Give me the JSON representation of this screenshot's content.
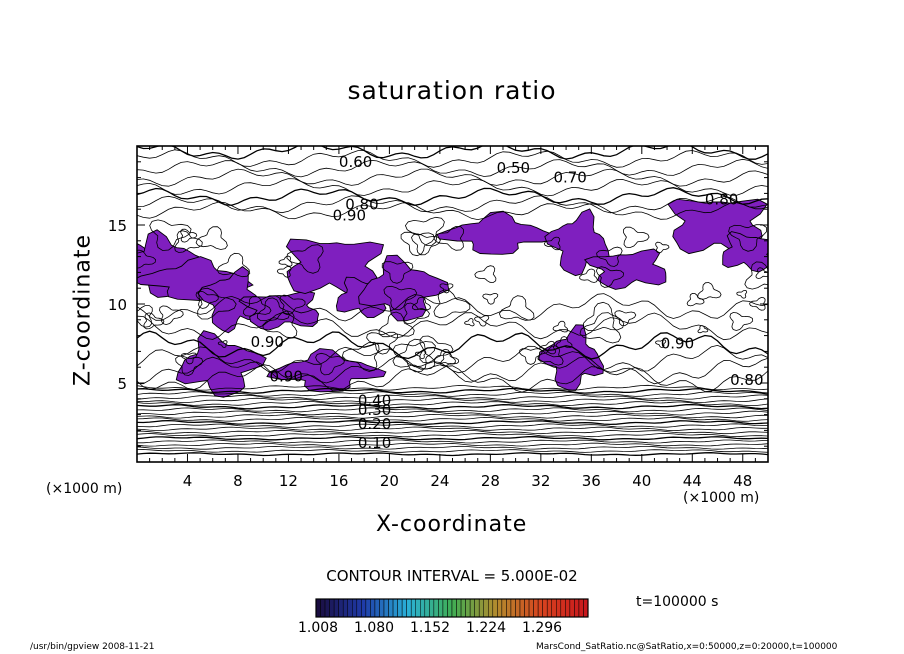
{
  "chart_data": {
    "type": "contour",
    "title": "saturation ratio",
    "xlabel": "X-coordinate",
    "ylabel": "Z-coordinate",
    "x_unit": "(×1000 m)",
    "y_unit": "(×1000 m)",
    "xlim": [
      0,
      50
    ],
    "ylim": [
      0,
      20
    ],
    "x_ticks": [
      4,
      8,
      12,
      16,
      20,
      24,
      28,
      32,
      36,
      40,
      44,
      48
    ],
    "y_ticks": [
      5,
      10,
      15
    ],
    "contour_interval_text": "CONTOUR INTERVAL = 5.000E-02",
    "time_text": "t=100000 s",
    "shaded_threshold": 1.0,
    "shade_color": "#7f1fbf",
    "colorbar": {
      "tick_labels": [
        "1.008",
        "1.080",
        "1.152",
        "1.224",
        "1.296"
      ],
      "colors": [
        "#1a0d40",
        "#1f3aa8",
        "#2ab0d8",
        "#3fae54",
        "#b38b2e",
        "#d8441f",
        "#c8171c"
      ]
    },
    "contour_labels": [
      {
        "text": "0.10",
        "x": 17.5,
        "y": 1.2
      },
      {
        "text": "0.20",
        "x": 17.5,
        "y": 2.4
      },
      {
        "text": "0.30",
        "x": 17.5,
        "y": 3.3
      },
      {
        "text": "0.40",
        "x": 17.5,
        "y": 3.9
      },
      {
        "text": "0.60",
        "x": 16.0,
        "y": 19.0
      },
      {
        "text": "0.50",
        "x": 28.5,
        "y": 18.6
      },
      {
        "text": "0.70",
        "x": 33.0,
        "y": 18.0
      },
      {
        "text": "0.80",
        "x": 16.5,
        "y": 16.3
      },
      {
        "text": "0.90",
        "x": 15.5,
        "y": 15.6
      },
      {
        "text": "0.80",
        "x": 45.0,
        "y": 16.6
      },
      {
        "text": "0.90",
        "x": 41.5,
        "y": 7.5
      },
      {
        "text": "0.90",
        "x": 9.0,
        "y": 7.6
      },
      {
        "text": "0.90",
        "x": 10.5,
        "y": 5.4
      },
      {
        "text": "0.80",
        "x": 47.0,
        "y": 5.2
      }
    ],
    "supersaturated_regions": [
      {
        "x": 0.5,
        "z": 12.6
      },
      {
        "x": 2.0,
        "z": 12.4
      },
      {
        "x": 4.5,
        "z": 11.5
      },
      {
        "x": 7.5,
        "z": 10.2
      },
      {
        "x": 11.5,
        "z": 9.6
      },
      {
        "x": 15.5,
        "z": 12.4
      },
      {
        "x": 18.0,
        "z": 10.4
      },
      {
        "x": 21.0,
        "z": 10.9
      },
      {
        "x": 28.5,
        "z": 14.4
      },
      {
        "x": 35.0,
        "z": 13.8
      },
      {
        "x": 39.0,
        "z": 12.2
      },
      {
        "x": 46.0,
        "z": 15.0
      },
      {
        "x": 48.5,
        "z": 13.3
      },
      {
        "x": 6.5,
        "z": 6.1
      },
      {
        "x": 15.0,
        "z": 5.7
      },
      {
        "x": 34.5,
        "z": 6.5
      }
    ]
  },
  "footer": {
    "left": "/usr/bin/gpview   2008-11-21",
    "right": "MarsCond_SatRatio.nc@SatRatio,x=0:50000,z=0:20000,t=100000"
  }
}
